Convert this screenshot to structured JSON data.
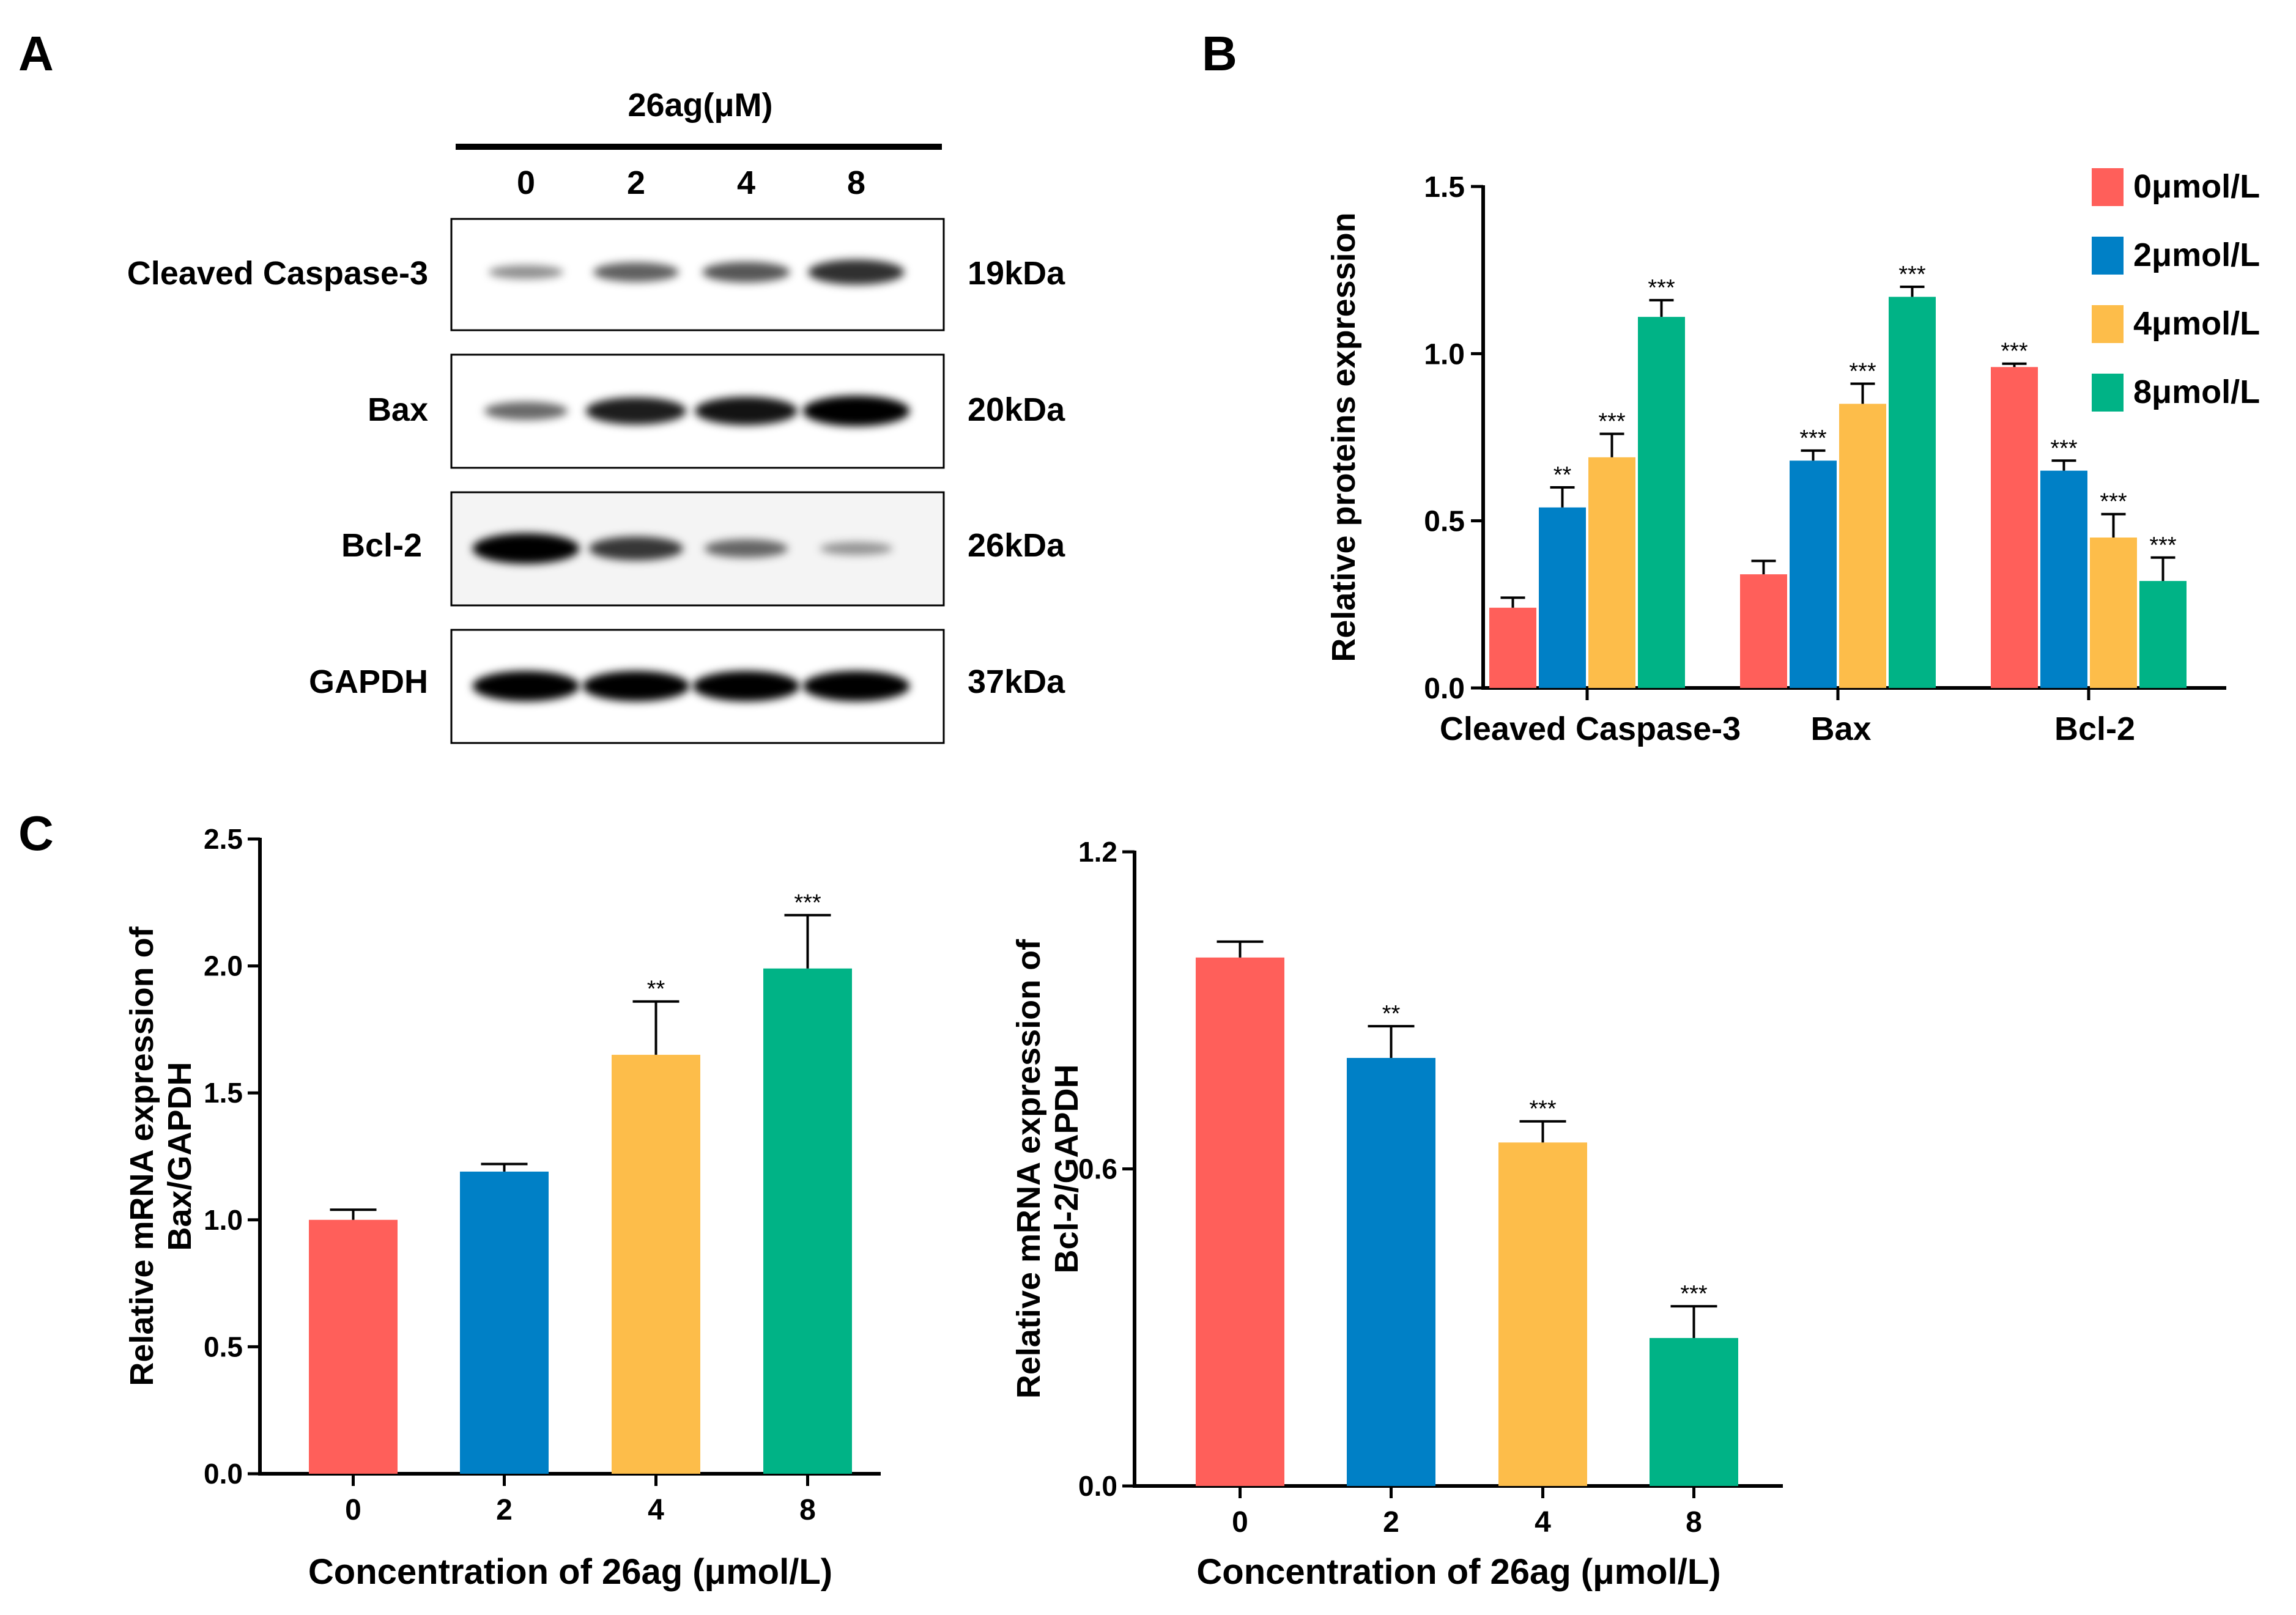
{
  "panel_labels": [
    "A",
    "B",
    "C"
  ],
  "blot": {
    "header": "26ag(μM)",
    "lanes": [
      "0",
      "2",
      "4",
      "8"
    ],
    "rows": [
      {
        "protein": "Cleaved Caspase-3",
        "size": "19kDa",
        "intensities": [
          0.25,
          0.5,
          0.55,
          0.75
        ]
      },
      {
        "protein": "Bax",
        "size": "20kDa",
        "intensities": [
          0.45,
          0.85,
          0.9,
          1.0
        ]
      },
      {
        "protein": "Bcl-2",
        "size": "26kDa",
        "intensities": [
          1.0,
          0.7,
          0.45,
          0.2
        ]
      },
      {
        "protein": "GAPDH",
        "size": "37kDa",
        "intensities": [
          1.0,
          1.0,
          1.0,
          1.0
        ]
      }
    ]
  },
  "colors": {
    "s0": "#FF5F5A",
    "s2": "#0080C6",
    "s4": "#FDBD4A",
    "s8": "#00B386",
    "axis": "#000000"
  },
  "chart_data": [
    {
      "type": "bar",
      "panel": "B",
      "ylabel": "Relative proteins expression",
      "ylim": [
        0,
        1.5
      ],
      "yticks": [
        "0.0",
        "0.5",
        "1.0",
        "1.5"
      ],
      "categories": [
        "Cleaved Caspase-3",
        "Bax",
        "Bcl-2"
      ],
      "legend": [
        "0μmol/L",
        "2μmol/L",
        "4μmol/L",
        "8μmol/L"
      ],
      "legend_position": "top-right",
      "series": [
        {
          "name": "0μmol/L",
          "values": [
            0.24,
            0.34,
            0.96
          ],
          "errors": [
            0.03,
            0.04,
            0.01
          ],
          "sig": [
            "",
            "",
            "***"
          ]
        },
        {
          "name": "2μmol/L",
          "values": [
            0.54,
            0.68,
            0.65
          ],
          "errors": [
            0.06,
            0.03,
            0.03
          ],
          "sig": [
            "**",
            "***",
            "***"
          ]
        },
        {
          "name": "4μmol/L",
          "values": [
            0.69,
            0.85,
            0.45
          ],
          "errors": [
            0.07,
            0.06,
            0.07
          ],
          "sig": [
            "***",
            "***",
            "***"
          ]
        },
        {
          "name": "8μmol/L",
          "values": [
            1.11,
            1.17,
            0.32
          ],
          "errors": [
            0.05,
            0.03,
            0.07
          ],
          "sig": [
            "***",
            "***",
            "***"
          ]
        }
      ]
    },
    {
      "type": "bar",
      "panel": "C-left",
      "ylabel_line1": "Relative mRNA expression of",
      "ylabel_line2": "Bax/GAPDH",
      "xlabel": "Concentration of 26ag (μmol/L)",
      "ylim": [
        0,
        2.5
      ],
      "yticks": [
        "0.0",
        "0.5",
        "1.0",
        "1.5",
        "2.0",
        "2.5"
      ],
      "categories": [
        "0",
        "2",
        "4",
        "8"
      ],
      "values": [
        1.0,
        1.19,
        1.65,
        1.99
      ],
      "errors": [
        0.04,
        0.03,
        0.21,
        0.21
      ],
      "sig": [
        "",
        "",
        "**",
        "***"
      ]
    },
    {
      "type": "bar",
      "panel": "C-right",
      "ylabel_line1": "Relative mRNA expression of",
      "ylabel_line2": "Bcl-2/GAPDH",
      "xlabel": "Concentration of 26ag (μmol/L)",
      "ylim": [
        0,
        1.2
      ],
      "yticks": [
        "0.0",
        "0.6",
        "1.2"
      ],
      "categories": [
        "0",
        "2",
        "4",
        "8"
      ],
      "values": [
        1.0,
        0.81,
        0.65,
        0.28
      ],
      "errors": [
        0.03,
        0.06,
        0.04,
        0.06
      ],
      "sig": [
        "",
        "**",
        "***",
        "***"
      ]
    }
  ]
}
